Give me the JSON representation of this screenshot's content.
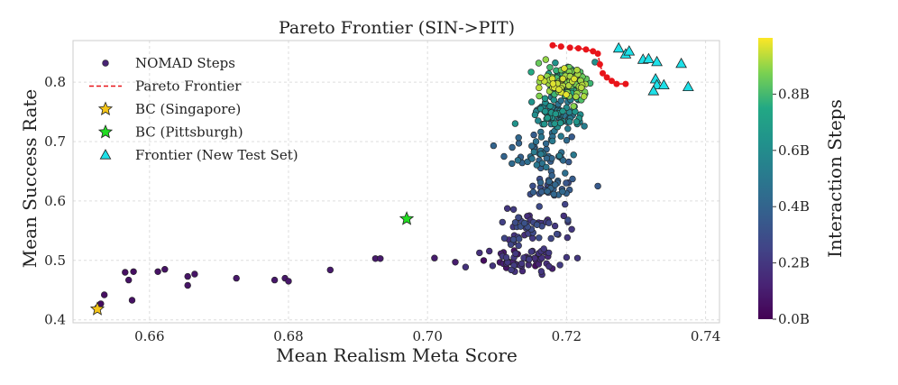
{
  "chart_data": {
    "type": "scatter",
    "title": "Pareto Frontier (SIN->PIT)",
    "xlabel": "Mean Realism Meta Score",
    "ylabel": "Mean Success Rate",
    "xlim": [
      0.649,
      0.742
    ],
    "ylim": [
      0.395,
      0.87
    ],
    "xticks": [
      0.66,
      0.68,
      0.7,
      0.72,
      0.74
    ],
    "xtick_labels": [
      "0.66",
      "0.68",
      "0.70",
      "0.72",
      "0.74"
    ],
    "yticks": [
      0.4,
      0.5,
      0.6,
      0.7,
      0.8
    ],
    "ytick_labels": [
      "0.4",
      "0.5",
      "0.6",
      "0.7",
      "0.8"
    ],
    "grid": true,
    "legend_position": "top-left",
    "colorbar": {
      "label": "Interaction Steps",
      "colormap": "viridis",
      "range": [
        0,
        1.0
      ],
      "ticks": [
        0.0,
        0.2,
        0.4,
        0.6,
        0.8
      ],
      "tick_labels": [
        "0.0B",
        "0.2B",
        "0.4B",
        "0.6B",
        "0.8B"
      ]
    },
    "series": [
      {
        "name": "NOMAD Steps",
        "marker": "circle",
        "color_by": "Interaction Steps",
        "clusters": [
          {
            "center": [
              0.7135,
              0.5
            ],
            "spread": [
              0.006,
              0.02
            ],
            "count": 60,
            "steps": [
              0.04,
              0.22
            ]
          },
          {
            "center": [
              0.715,
              0.555
            ],
            "spread": [
              0.004,
              0.03
            ],
            "count": 55,
            "steps": [
              0.15,
              0.32
            ]
          },
          {
            "center": [
              0.718,
              0.625
            ],
            "spread": [
              0.003,
              0.02
            ],
            "count": 35,
            "steps": [
              0.28,
              0.42
            ]
          },
          {
            "center": [
              0.716,
              0.685
            ],
            "spread": [
              0.004,
              0.03
            ],
            "count": 50,
            "steps": [
              0.35,
              0.52
            ]
          },
          {
            "center": [
              0.7185,
              0.745
            ],
            "spread": [
              0.003,
              0.025
            ],
            "count": 80,
            "steps": [
              0.45,
              0.68
            ]
          },
          {
            "center": [
              0.72,
              0.8
            ],
            "spread": [
              0.003,
              0.022
            ],
            "count": 160,
            "steps": [
              0.6,
              0.98
            ]
          }
        ],
        "points": [
          {
            "x": 0.6525,
            "y": 0.42,
            "s": 0.03
          },
          {
            "x": 0.653,
            "y": 0.427,
            "s": 0.04
          },
          {
            "x": 0.6535,
            "y": 0.442,
            "s": 0.05
          },
          {
            "x": 0.6565,
            "y": 0.48,
            "s": 0.05
          },
          {
            "x": 0.6577,
            "y": 0.481,
            "s": 0.05
          },
          {
            "x": 0.657,
            "y": 0.467,
            "s": 0.06
          },
          {
            "x": 0.6575,
            "y": 0.433,
            "s": 0.06
          },
          {
            "x": 0.6612,
            "y": 0.481,
            "s": 0.06
          },
          {
            "x": 0.6622,
            "y": 0.485,
            "s": 0.06
          },
          {
            "x": 0.6655,
            "y": 0.473,
            "s": 0.07
          },
          {
            "x": 0.6665,
            "y": 0.477,
            "s": 0.07
          },
          {
            "x": 0.6655,
            "y": 0.458,
            "s": 0.07
          },
          {
            "x": 0.6725,
            "y": 0.47,
            "s": 0.08
          },
          {
            "x": 0.678,
            "y": 0.467,
            "s": 0.08
          },
          {
            "x": 0.6795,
            "y": 0.47,
            "s": 0.08
          },
          {
            "x": 0.68,
            "y": 0.465,
            "s": 0.08
          },
          {
            "x": 0.686,
            "y": 0.484,
            "s": 0.09
          },
          {
            "x": 0.6925,
            "y": 0.503,
            "s": 0.09
          },
          {
            "x": 0.6932,
            "y": 0.503,
            "s": 0.09
          },
          {
            "x": 0.701,
            "y": 0.504,
            "s": 0.1
          },
          {
            "x": 0.704,
            "y": 0.497,
            "s": 0.1
          },
          {
            "x": 0.7245,
            "y": 0.625,
            "s": 0.35
          },
          {
            "x": 0.72,
            "y": 0.505,
            "s": 0.2
          },
          {
            "x": 0.7095,
            "y": 0.693,
            "s": 0.4
          },
          {
            "x": 0.711,
            "y": 0.675,
            "s": 0.4
          },
          {
            "x": 0.717,
            "y": 0.838,
            "s": 0.9
          },
          {
            "x": 0.716,
            "y": 0.832,
            "s": 0.85
          },
          {
            "x": 0.7178,
            "y": 0.65,
            "s": 0.38
          }
        ]
      },
      {
        "name": "Pareto Frontier",
        "line_style": "dashed",
        "color": "#e8141a",
        "points": [
          {
            "x": 0.718,
            "y": 0.862
          },
          {
            "x": 0.7192,
            "y": 0.86
          },
          {
            "x": 0.7205,
            "y": 0.858
          },
          {
            "x": 0.7217,
            "y": 0.857
          },
          {
            "x": 0.7228,
            "y": 0.855
          },
          {
            "x": 0.7238,
            "y": 0.852
          },
          {
            "x": 0.7245,
            "y": 0.848
          },
          {
            "x": 0.7248,
            "y": 0.83
          },
          {
            "x": 0.7252,
            "y": 0.815
          },
          {
            "x": 0.7258,
            "y": 0.808
          },
          {
            "x": 0.7265,
            "y": 0.802
          },
          {
            "x": 0.7272,
            "y": 0.797
          },
          {
            "x": 0.7285,
            "y": 0.797
          }
        ]
      },
      {
        "name": "BC (Singapore)",
        "marker": "star",
        "color": "#f5c518",
        "points": [
          {
            "x": 0.6525,
            "y": 0.418
          }
        ]
      },
      {
        "name": "BC (Pittsburgh)",
        "marker": "star",
        "color": "#22dd22",
        "points": [
          {
            "x": 0.697,
            "y": 0.57
          }
        ]
      },
      {
        "name": "Frontier (New Test Set)",
        "marker": "triangle",
        "color": "#1ee0e8",
        "points": [
          {
            "x": 0.7275,
            "y": 0.857
          },
          {
            "x": 0.7285,
            "y": 0.847
          },
          {
            "x": 0.729,
            "y": 0.852
          },
          {
            "x": 0.731,
            "y": 0.838
          },
          {
            "x": 0.7318,
            "y": 0.839
          },
          {
            "x": 0.733,
            "y": 0.834
          },
          {
            "x": 0.7365,
            "y": 0.831
          },
          {
            "x": 0.7328,
            "y": 0.805
          },
          {
            "x": 0.733,
            "y": 0.795
          },
          {
            "x": 0.734,
            "y": 0.795
          },
          {
            "x": 0.7325,
            "y": 0.785
          },
          {
            "x": 0.7375,
            "y": 0.792
          }
        ]
      }
    ]
  }
}
